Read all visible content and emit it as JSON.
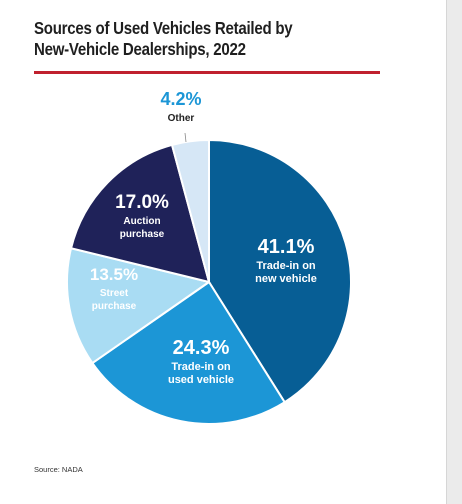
{
  "chart_data": {
    "type": "pie",
    "title_lines": [
      "Sources of Used Vehicles Retailed by",
      "New-Vehicle Dealerships, 2022"
    ],
    "source": "Source: NADA",
    "slices": [
      {
        "name_lines": [
          "Trade-in on",
          "new vehicle"
        ],
        "value": 41.1,
        "label": "41.1%",
        "color": "#075e95",
        "pct_color": "#ffffff",
        "text_color": "#ffffff"
      },
      {
        "name_lines": [
          "Trade-in on",
          "used vehicle"
        ],
        "value": 24.3,
        "label": "24.3%",
        "color": "#1c96d6",
        "pct_color": "#ffffff",
        "text_color": "#ffffff"
      },
      {
        "name_lines": [
          "Street",
          "purchase"
        ],
        "value": 13.5,
        "label": "13.5%",
        "color": "#a9dcf3",
        "pct_color": "#ffffff",
        "text_color": "#ffffff"
      },
      {
        "name_lines": [
          "Auction",
          "purchase"
        ],
        "value": 17.0,
        "label": "17.0%",
        "color": "#1f2259",
        "pct_color": "#ffffff",
        "text_color": "#ffffff"
      },
      {
        "name_lines": [
          "Other"
        ],
        "value": 4.2,
        "label": "4.2%",
        "color": "#d6e7f6",
        "pct_color": "#1c96d6",
        "text_color": "#222222"
      }
    ]
  }
}
